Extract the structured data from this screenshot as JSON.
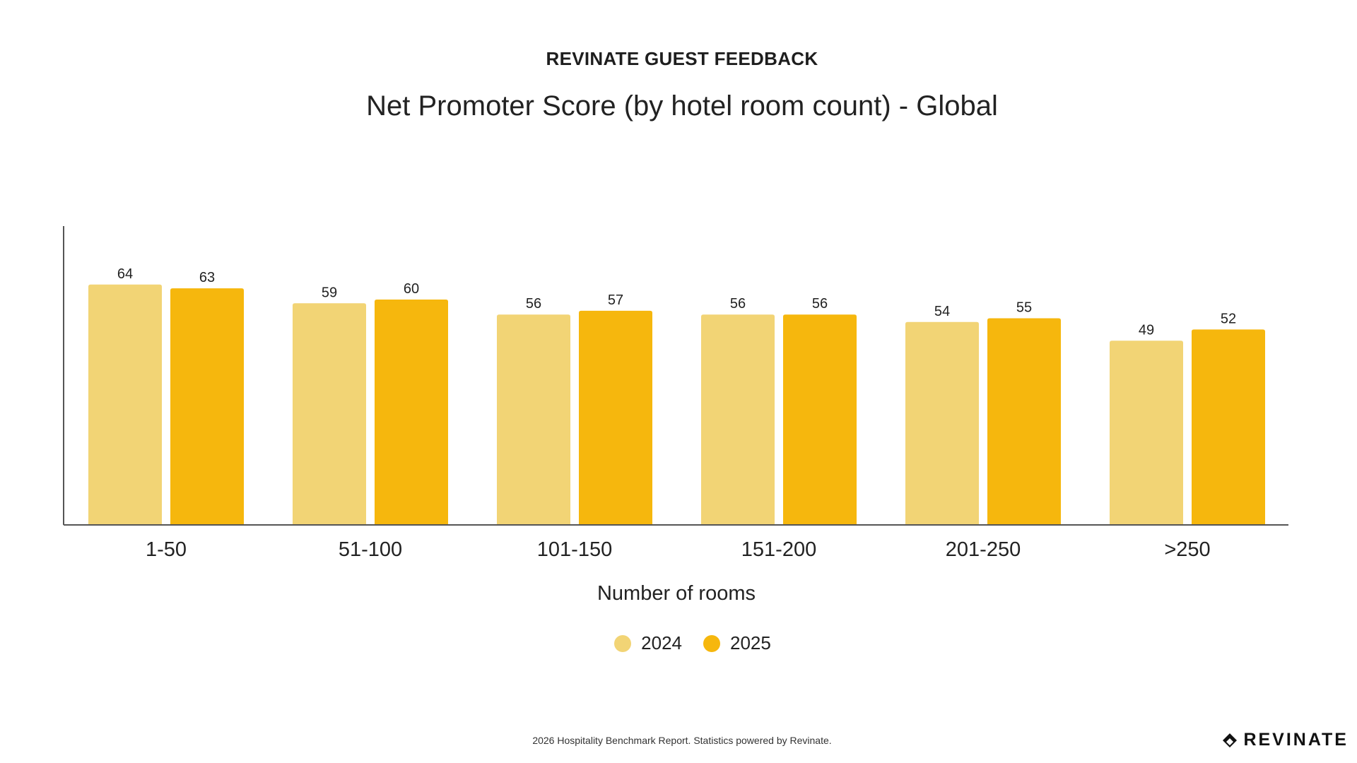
{
  "header": {
    "supertitle": "REVINATE GUEST FEEDBACK",
    "title": "Net Promoter Score (by hotel room count) - Global"
  },
  "chart_data": {
    "type": "bar",
    "title": "Net Promoter Score (by hotel room count) - Global",
    "xlabel": "Number of rooms",
    "ylabel": "",
    "categories": [
      "1-50",
      "51-100",
      "101-150",
      "151-200",
      "201-250",
      ">250"
    ],
    "series": [
      {
        "name": "2024",
        "values": [
          64,
          59,
          56,
          56,
          54,
          49
        ],
        "color": "#F2D475"
      },
      {
        "name": "2025",
        "values": [
          63,
          60,
          57,
          56,
          55,
          52
        ],
        "color": "#F6B70D"
      }
    ],
    "ylim": [
      0,
      80
    ],
    "grid": false,
    "legend_position": "bottom-center",
    "data_labels": true
  },
  "legend": {
    "items": [
      {
        "label": "2024",
        "color": "#F2D475"
      },
      {
        "label": "2025",
        "color": "#F6B70D"
      }
    ]
  },
  "footer": {
    "note": "2026 Hospitality Benchmark Report. Statistics powered by Revinate.",
    "brand": "REVINATE"
  },
  "colors": {
    "axis": "#555555",
    "brand": "#111111"
  },
  "icons": {
    "brand_logo": "revinate-logo-icon"
  }
}
